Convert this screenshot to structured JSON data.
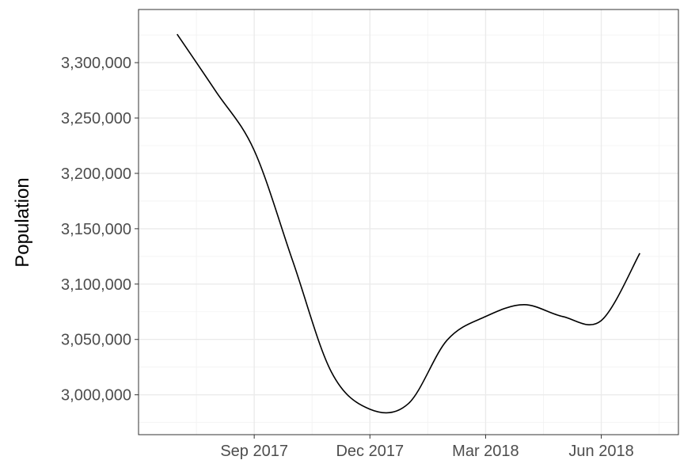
{
  "chart_data": {
    "type": "line",
    "y_label": "Population",
    "x": [
      "2017-07",
      "2017-08",
      "2017-09",
      "2017-10",
      "2017-11",
      "2017-12",
      "2018-01",
      "2018-02",
      "2018-03",
      "2018-04",
      "2018-05",
      "2018-06",
      "2018-07"
    ],
    "series": [
      {
        "name": "Population",
        "color": "#000000",
        "values": [
          3325700,
          3274300,
          3220700,
          3120700,
          3020700,
          2987000,
          2992100,
          3049300,
          3070700,
          3081400,
          3070700,
          3067100,
          3127900
        ]
      }
    ],
    "xlim": [
      "2017-06",
      "2018-08"
    ],
    "xticks": [
      {
        "value": "2017-09",
        "label": "Sep 2017"
      },
      {
        "value": "2017-12",
        "label": "Dec 2017"
      },
      {
        "value": "2018-03",
        "label": "Mar 2018"
      },
      {
        "value": "2018-06",
        "label": "Jun 2018"
      }
    ],
    "ylim": [
      2964000,
      3348000
    ],
    "yticks": [
      {
        "value": 3000000,
        "label": "3,000,000"
      },
      {
        "value": 3050000,
        "label": "3,050,000"
      },
      {
        "value": 3100000,
        "label": "3,100,000"
      },
      {
        "value": 3150000,
        "label": "3,150,000"
      },
      {
        "value": 3200000,
        "label": "3,200,000"
      },
      {
        "value": 3250000,
        "label": "3,250,000"
      },
      {
        "value": 3300000,
        "label": "3,300,000"
      }
    ],
    "grid": true
  }
}
